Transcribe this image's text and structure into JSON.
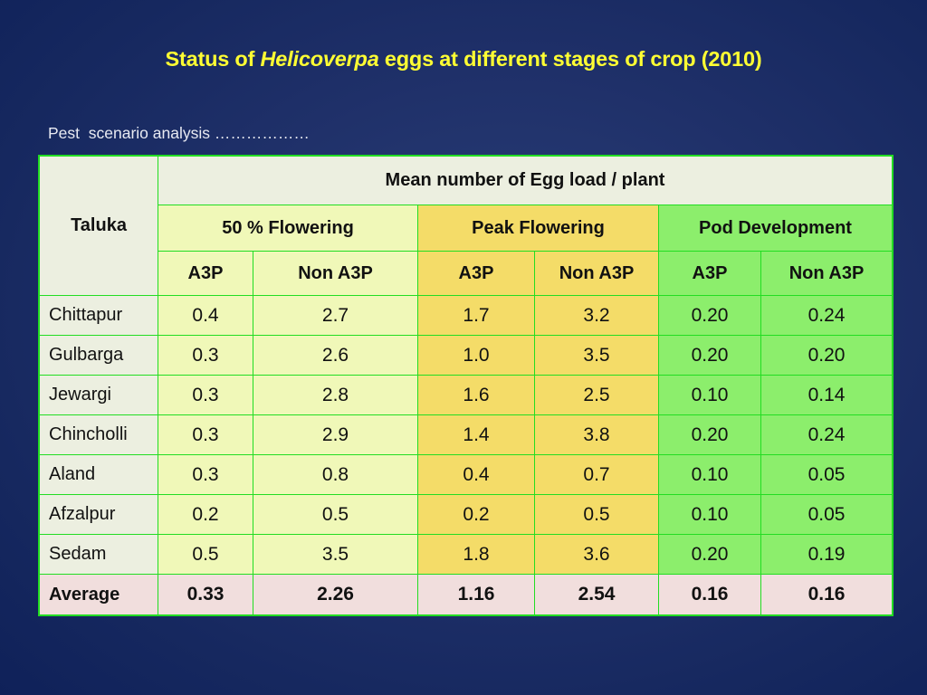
{
  "slide": {
    "title_prefix": "Status of ",
    "title_italic": "Helicoverpa",
    "title_suffix": " eggs at different stages of crop (2010)",
    "subtitle": "Pest  scenario analysis ………………"
  },
  "table": {
    "row_header": "Taluka",
    "group_header": "Mean number of Egg load / plant",
    "stages": [
      "50 %  Flowering",
      "Peak  Flowering",
      "Pod  Development"
    ],
    "sub_headers": [
      "A3P",
      "Non A3P",
      "A3P",
      "Non A3P",
      "A3P",
      "Non A3P"
    ],
    "rows": [
      {
        "taluka": "Chittapur",
        "values": [
          "0.4",
          "2.7",
          "1.7",
          "3.2",
          "0.20",
          "0.24"
        ]
      },
      {
        "taluka": "Gulbarga",
        "values": [
          "0.3",
          "2.6",
          "1.0",
          "3.5",
          "0.20",
          "0.20"
        ]
      },
      {
        "taluka": "Jewargi",
        "values": [
          "0.3",
          "2.8",
          "1.6",
          "2.5",
          "0.10",
          "0.14"
        ]
      },
      {
        "taluka": "Chincholli",
        "values": [
          "0.3",
          "2.9",
          "1.4",
          "3.8",
          "0.20",
          "0.24"
        ]
      },
      {
        "taluka": "Aland",
        "values": [
          "0.3",
          "0.8",
          "0.4",
          "0.7",
          "0.10",
          "0.05"
        ]
      },
      {
        "taluka": "Afzalpur",
        "values": [
          "0.2",
          "0.5",
          "0.2",
          "0.5",
          "0.10",
          "0.05"
        ]
      },
      {
        "taluka": "Sedam",
        "values": [
          "0.5",
          "3.5",
          "1.8",
          "3.6",
          "0.20",
          "0.19"
        ]
      }
    ],
    "average": {
      "label": "Average",
      "values": [
        "0.33",
        "2.26",
        "1.16",
        "2.54",
        "0.16",
        "0.16"
      ]
    }
  },
  "colors": {
    "title": "#ffff33",
    "border": "#22dd22",
    "flowering_50": "#f0f8b8",
    "peak_flowering": "#f4dc68",
    "pod_development": "#8cee6c",
    "average_row": "#f1dedd"
  }
}
